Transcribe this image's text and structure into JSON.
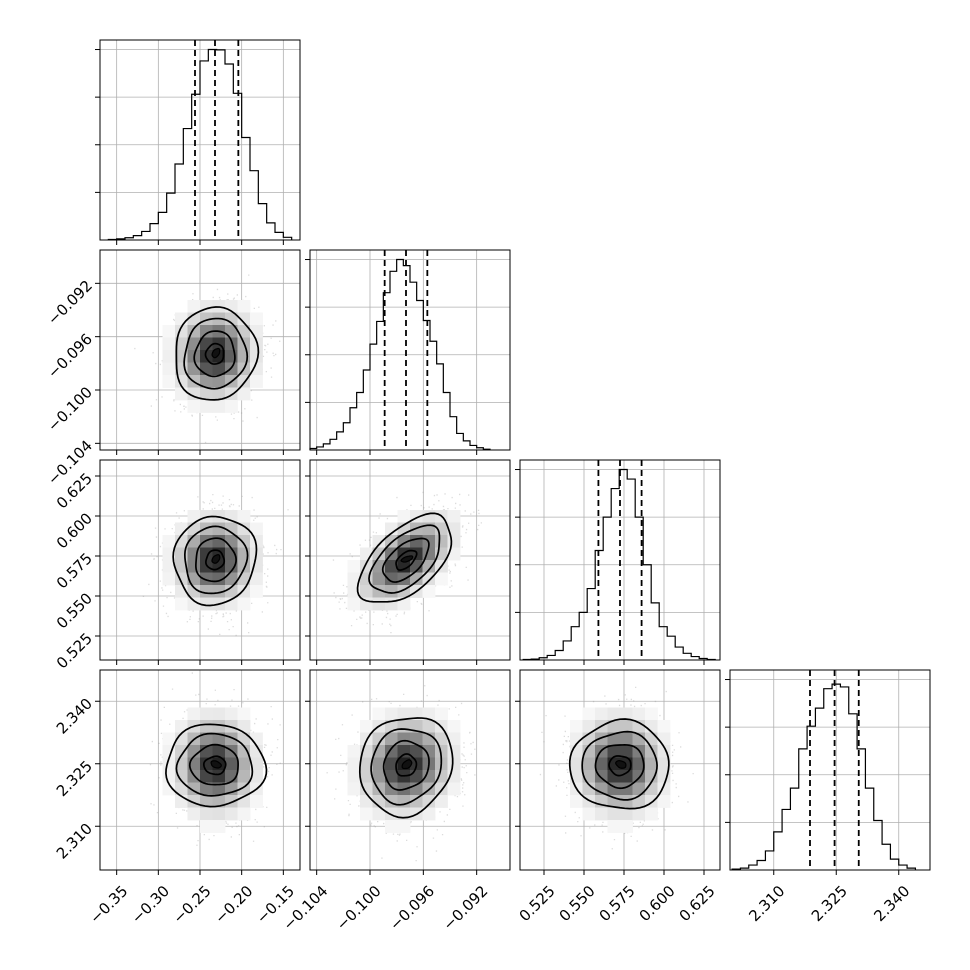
{
  "chart_data": {
    "type": "corner",
    "n_params": 4,
    "grid": true,
    "params": [
      {
        "range": [
          -0.37,
          -0.13
        ],
        "ticks": [
          -0.35,
          -0.3,
          -0.25,
          -0.2,
          -0.15
        ],
        "tick_labels": [
          "−0.35",
          "−0.30",
          "−0.25",
          "−0.20",
          "−0.15"
        ],
        "mean": -0.232,
        "std": 0.024,
        "quantiles": [
          -0.256,
          -0.232,
          -0.204
        ],
        "hist": {
          "edges": [
            -0.36,
            -0.35,
            -0.34,
            -0.33,
            -0.32,
            -0.31,
            -0.3,
            -0.29,
            -0.28,
            -0.27,
            -0.26,
            -0.25,
            -0.24,
            -0.23,
            -0.22,
            -0.21,
            -0.2,
            -0.19,
            -0.18,
            -0.17,
            -0.16,
            -0.15,
            -0.14
          ],
          "counts": [
            0.3,
            0.6,
            1.2,
            2.3,
            4.5,
            8.6,
            14.5,
            24.6,
            39.9,
            58.5,
            76.5,
            94.0,
            100.0,
            99.8,
            92.4,
            77.0,
            53.8,
            36.4,
            19.1,
            9.0,
            4.0,
            1.4
          ]
        }
      },
      {
        "range": [
          -0.1045,
          -0.0895
        ],
        "ticks": [
          -0.104,
          -0.1,
          -0.096,
          -0.092
        ],
        "tick_labels": [
          "−0.104",
          "−0.100",
          "−0.096",
          "−0.092"
        ],
        "mean": -0.0973,
        "std": 0.0017,
        "quantiles": [
          -0.0989,
          -0.0973,
          -0.0957
        ],
        "hist": {
          "edges": [
            -0.1045,
            -0.104,
            -0.1035,
            -0.103,
            -0.1025,
            -0.102,
            -0.1015,
            -0.101,
            -0.1005,
            -0.1,
            -0.0995,
            -0.099,
            -0.0985,
            -0.098,
            -0.0975,
            -0.097,
            -0.0965,
            -0.096,
            -0.0955,
            -0.095,
            -0.0945,
            -0.094,
            -0.0935,
            -0.093,
            -0.0925,
            -0.092,
            -0.0915,
            -0.091
          ],
          "counts": [
            0.8,
            1.6,
            3.2,
            5.6,
            9.5,
            14.3,
            22.2,
            30.2,
            42.0,
            55.6,
            67.5,
            82.6,
            93.8,
            100.0,
            96.8,
            88.1,
            78.5,
            68.0,
            57.1,
            45.2,
            30.2,
            17.5,
            8.7,
            4.8,
            2.4,
            1.2,
            0.4
          ]
        }
      },
      {
        "range": [
          0.51,
          0.635
        ],
        "ticks": [
          0.525,
          0.55,
          0.575,
          0.6,
          0.625
        ],
        "tick_labels": [
          "0.525",
          "0.550",
          "0.575",
          "0.600",
          "0.625"
        ],
        "mean": 0.5725,
        "std": 0.0135,
        "quantiles": [
          0.559,
          0.5725,
          0.586
        ],
        "hist": {
          "edges": [
            0.512,
            0.517,
            0.522,
            0.527,
            0.532,
            0.537,
            0.542,
            0.547,
            0.552,
            0.557,
            0.562,
            0.567,
            0.572,
            0.577,
            0.582,
            0.587,
            0.592,
            0.597,
            0.602,
            0.607,
            0.612,
            0.617,
            0.622,
            0.627,
            0.632
          ],
          "counts": [
            0.3,
            0.5,
            1.2,
            2.4,
            5.0,
            10.0,
            17.5,
            25.0,
            37.5,
            57.5,
            75.0,
            90.0,
            100.0,
            95.0,
            75.0,
            50.0,
            30.0,
            17.5,
            12.5,
            6.8,
            3.5,
            1.8,
            0.8,
            0.3
          ]
        }
      },
      {
        "range": [
          2.2995,
          2.3475
        ],
        "ticks": [
          2.31,
          2.325,
          2.34
        ],
        "tick_labels": [
          "2.310",
          "2.325",
          "2.340"
        ],
        "mean": 2.3246,
        "std": 0.0058,
        "quantiles": [
          2.3187,
          2.3246,
          2.3304
        ],
        "hist": {
          "edges": [
            2.3,
            2.302,
            2.304,
            2.306,
            2.308,
            2.31,
            2.312,
            2.314,
            2.316,
            2.318,
            2.32,
            2.322,
            2.324,
            2.326,
            2.328,
            2.33,
            2.332,
            2.334,
            2.336,
            2.338,
            2.34,
            2.342,
            2.344
          ],
          "counts": [
            0.5,
            1.0,
            2.6,
            5.0,
            10.0,
            20.0,
            31.8,
            43.0,
            63.6,
            75.5,
            85.0,
            95.2,
            97.6,
            96.1,
            82.0,
            63.6,
            43.0,
            26.0,
            13.5,
            5.7,
            2.6,
            1.0
          ]
        }
      }
    ],
    "correlations": [
      [
        1,
        0.05,
        0.05,
        0.0
      ],
      [
        0.05,
        1,
        0.55,
        0.1
      ],
      [
        0.05,
        0.55,
        1,
        0.0
      ],
      [
        0.0,
        0.1,
        0.0,
        1
      ]
    ]
  }
}
